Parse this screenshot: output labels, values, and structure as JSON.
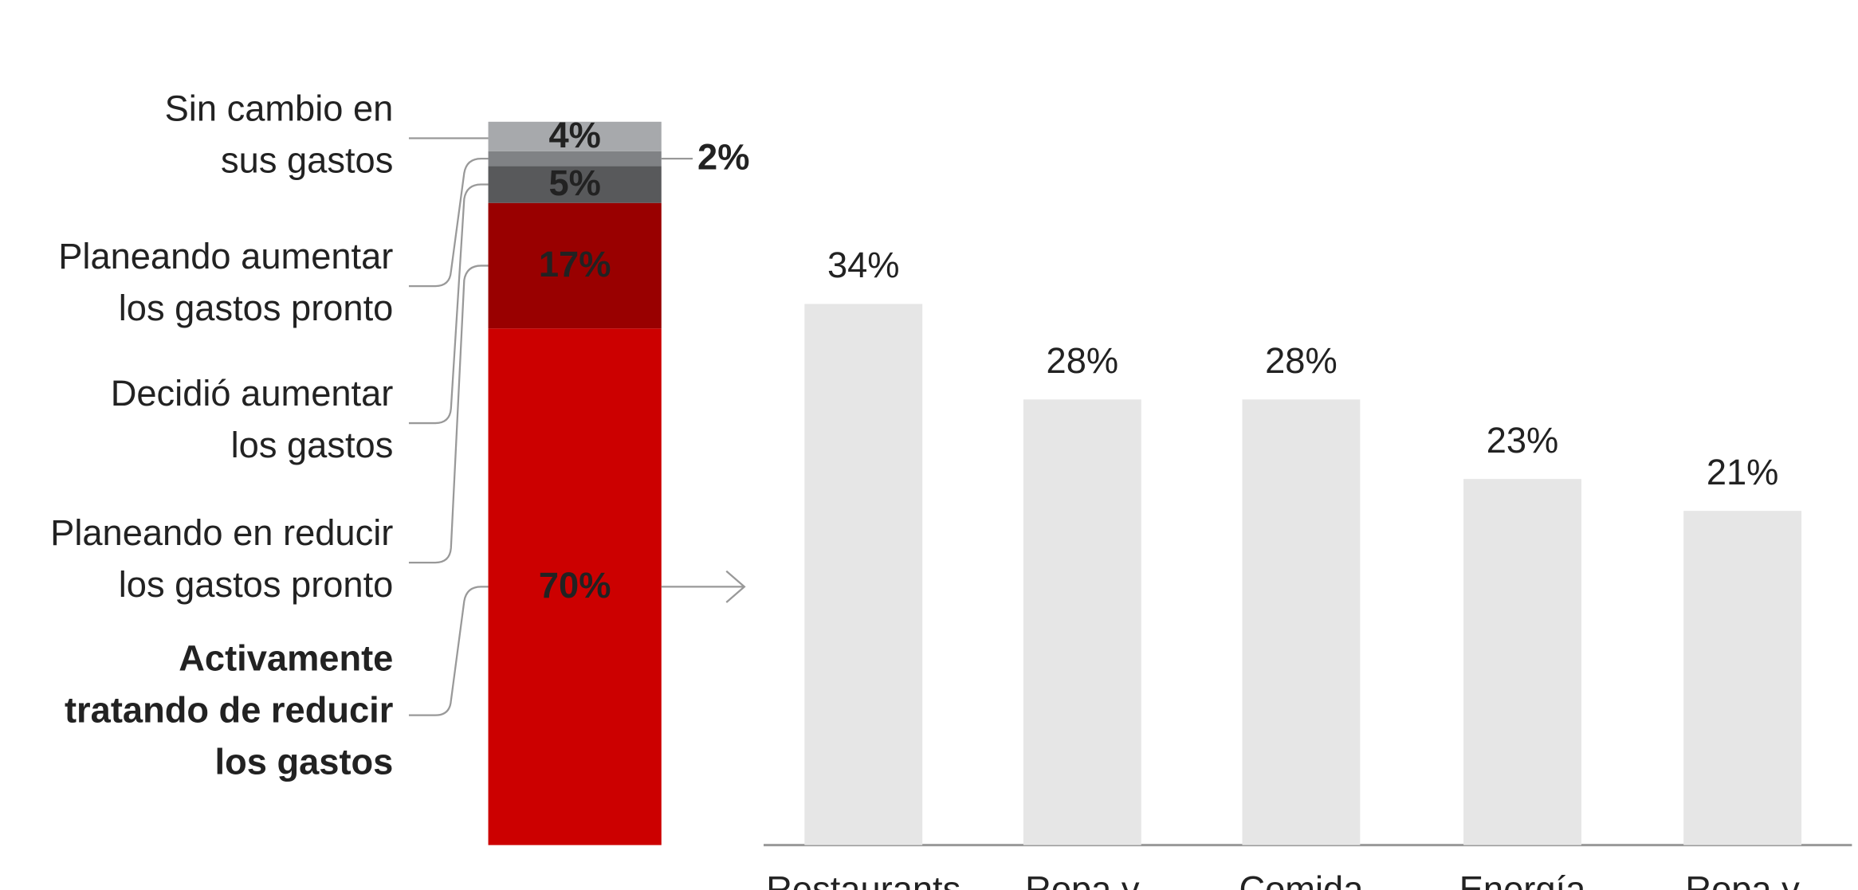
{
  "chart_data": [
    {
      "type": "stacked-column",
      "series": [
        {
          "name": [
            "Activamente",
            "tratando de reducir",
            "los gastos"
          ],
          "color": "#cc0000",
          "values": [
            70
          ],
          "value_labels": [
            "70%"
          ],
          "bold": true
        },
        {
          "name": [
            "Planeando en reducir",
            "los gastos pronto"
          ],
          "color": "#990000",
          "values": [
            17
          ],
          "value_labels": [
            "17%"
          ]
        },
        {
          "name": [
            "Decidió aumentar",
            "los gastos"
          ],
          "color": "#58595b",
          "values": [
            5
          ],
          "value_labels": [
            "5%"
          ]
        },
        {
          "name": [
            "Planeando aumentar",
            "los gastos pronto"
          ],
          "color": "#808285",
          "values": [
            2
          ],
          "value_labels": [
            "2%"
          ]
        },
        {
          "name": [
            "Sin cambio en",
            "sus gastos"
          ],
          "color": "#a7a9ac",
          "values": [
            4
          ],
          "value_labels": [
            "4%"
          ]
        }
      ]
    },
    {
      "type": "bar",
      "categories": [
        "Restaurants",
        "Ropa y",
        "Comida",
        "Energía",
        "Ropa y"
      ],
      "values": [
        34,
        28,
        28,
        23,
        21
      ],
      "value_labels": [
        "34%",
        "28%",
        "28%",
        "23%",
        "21%"
      ],
      "color": "#e6e6e6"
    }
  ]
}
